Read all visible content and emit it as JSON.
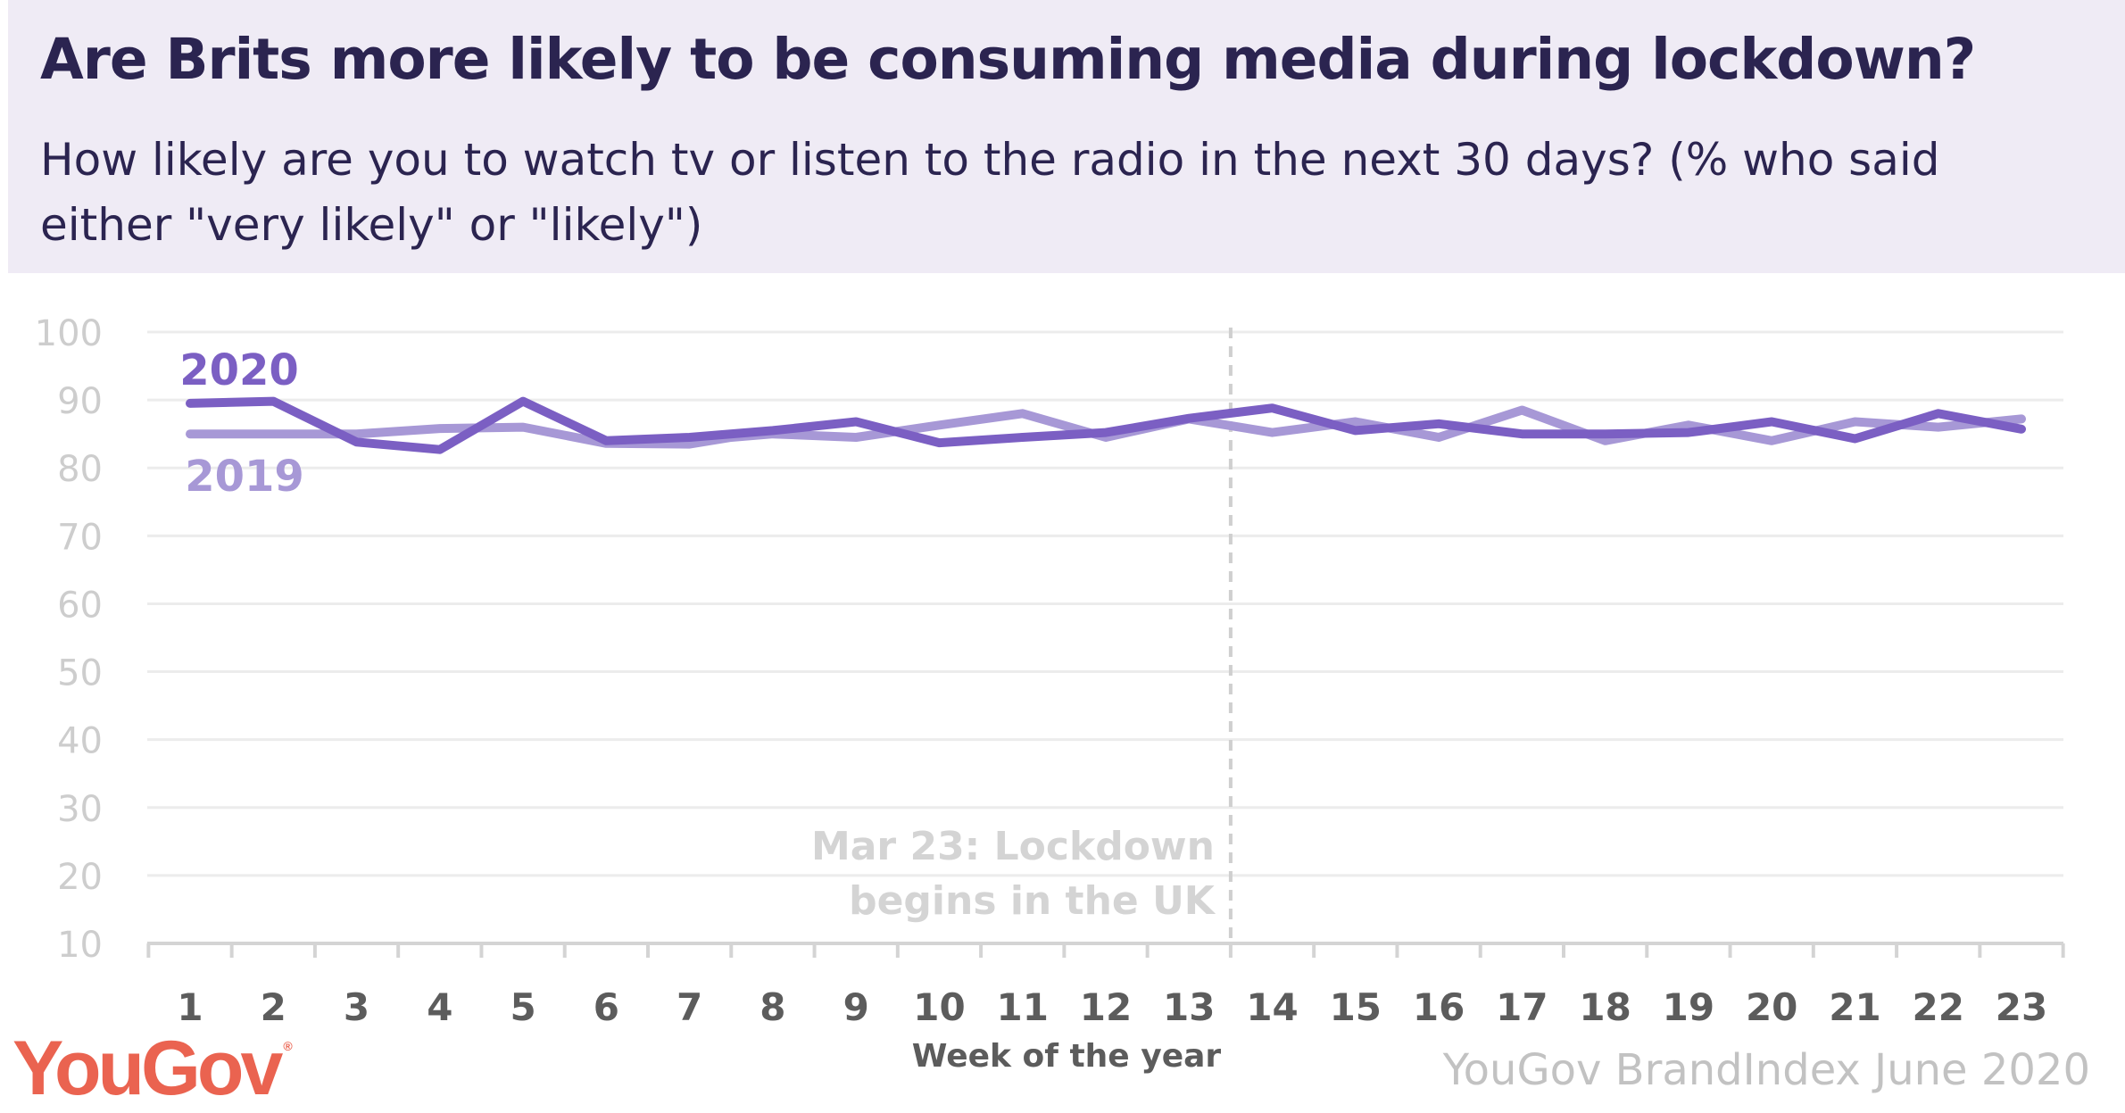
{
  "header": {
    "title": "Are Brits more likely to be consuming media during lockdown?",
    "subtitle": "How likely are you to watch tv or listen to the radio in the next 30 days? (% who said either \"very likely\" or \"likely\")"
  },
  "footer": {
    "logo": "YouGov",
    "source": "YouGov BrandIndex June 2020"
  },
  "chart_data": {
    "type": "line",
    "title": "Are Brits more likely to be consuming media during lockdown?",
    "subtitle": "How likely are you to watch tv or listen to the radio in the next 30 days? (% who said either \"very likely\" or \"likely\")",
    "xlabel": "Week of the year",
    "ylabel": "",
    "x": [
      1,
      2,
      3,
      4,
      5,
      6,
      7,
      8,
      9,
      10,
      11,
      12,
      13,
      14,
      15,
      16,
      17,
      18,
      19,
      20,
      21,
      22,
      23
    ],
    "ylim": [
      10,
      100
    ],
    "yticks": [
      10,
      20,
      30,
      40,
      50,
      60,
      70,
      80,
      90,
      100
    ],
    "grid": true,
    "series": [
      {
        "name": "2019",
        "color": "#a798d6",
        "x": [
          1,
          2,
          3,
          4,
          5,
          6,
          7,
          7.5,
          8,
          9,
          10,
          11,
          12,
          13,
          14,
          15,
          16,
          17,
          18,
          19,
          20,
          21,
          22,
          23
        ],
        "values": [
          85,
          85,
          85,
          85.8,
          86,
          83.6,
          83.5,
          84.5,
          85,
          84.5,
          86.3,
          88,
          84.5,
          87.2,
          85.2,
          86.8,
          84.5,
          88.5,
          84,
          86.3,
          84,
          86.8,
          86,
          87.2
        ]
      },
      {
        "name": "2020",
        "color": "#7b5fc3",
        "x": [
          1,
          2,
          3,
          4,
          5,
          6,
          7,
          8,
          9,
          10,
          11,
          12,
          13,
          14,
          15,
          16,
          17,
          18,
          19,
          20,
          21,
          22,
          23
        ],
        "values": [
          89.5,
          89.8,
          83.8,
          82.7,
          89.8,
          84,
          84.5,
          85.5,
          86.8,
          83.7,
          84.5,
          85.2,
          87.3,
          88.8,
          85.5,
          86.5,
          85,
          85,
          85.2,
          86.8,
          84.3,
          88,
          85.7
        ]
      }
    ],
    "annotations": [
      {
        "x": 13.5,
        "text_lines": [
          "Mar 23: Lockdown",
          "begins in the UK"
        ]
      }
    ]
  }
}
